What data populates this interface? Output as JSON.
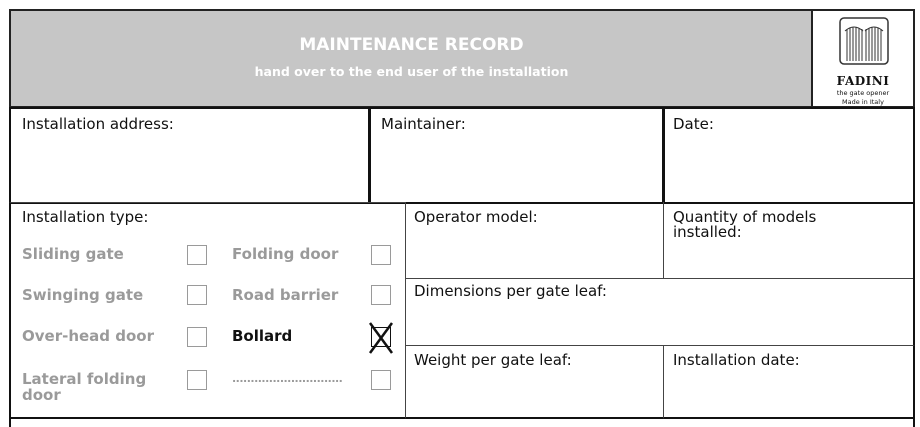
{
  "header": {
    "title": "MAINTENANCE RECORD",
    "subtitle": "hand over to the end user of the installation"
  },
  "logo": {
    "brand": "FADINI",
    "tagline": "the gate opener",
    "origin": "Made in Italy"
  },
  "fields": {
    "installation_address": "Installation address:",
    "maintainer": "Maintainer:",
    "date": "Date:",
    "operator_model": "Operator model:",
    "quantity_line1": "Quantity of models",
    "quantity_line2": "installed:",
    "dimensions": "Dimensions per gate leaf:",
    "weight": "Weight per gate leaf:",
    "installation_date": "Installation date:"
  },
  "installation_type": {
    "label": "Installation type:",
    "options": [
      {
        "label": "Sliding gate",
        "checked": false
      },
      {
        "label": "Swinging gate",
        "checked": false
      },
      {
        "label": "Over-head door",
        "checked": false
      },
      {
        "label": "Lateral folding",
        "label2": "door",
        "checked": false
      },
      {
        "label": "Folding door",
        "checked": false
      },
      {
        "label": "Road barrier",
        "checked": false
      },
      {
        "label": "Bollard",
        "checked": true
      },
      {
        "label": "..............................",
        "checked": false
      }
    ]
  }
}
